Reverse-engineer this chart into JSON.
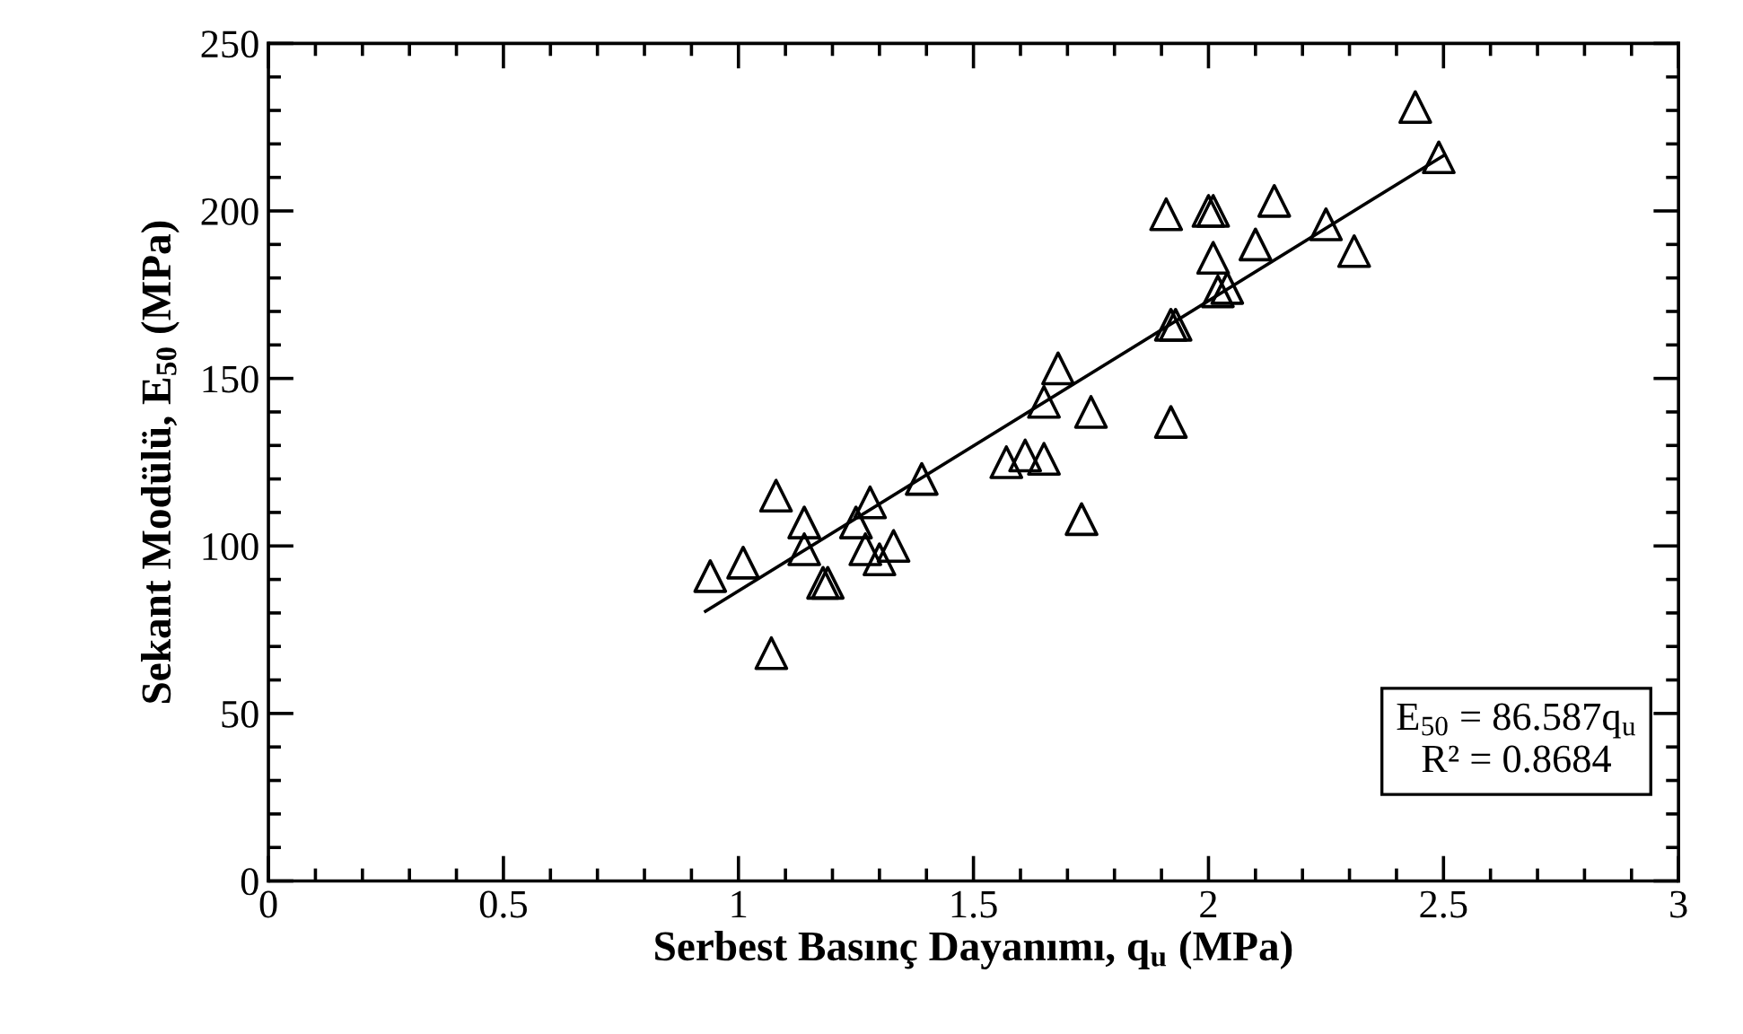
{
  "chart_data": {
    "type": "scatter",
    "xlabel": "Serbest Basınç Dayanımı, q$_{u}$ (MPa)",
    "ylabel": "Sekant Modülü, E$_{50}$ (MPa)",
    "xlim": [
      0,
      3
    ],
    "xticks": [
      0,
      0.5,
      1,
      1.5,
      2,
      2.5,
      3
    ],
    "ylim": [
      0,
      250
    ],
    "yticks": [
      0,
      50,
      100,
      150,
      200,
      250
    ],
    "grid": false,
    "legend": false,
    "series": [
      {
        "marker": "triangle",
        "color": "#000000",
        "x": [
          0.94,
          1.01,
          1.08,
          1.14,
          1.14,
          1.18,
          1.19,
          1.07,
          1.25,
          1.28,
          1.27,
          1.3,
          1.33,
          1.39,
          1.57,
          1.61,
          1.65,
          1.73,
          1.65,
          1.68,
          1.75,
          1.92,
          1.92,
          1.93,
          1.91,
          2.0,
          2.01,
          2.01,
          2.02,
          2.04,
          2.1,
          2.14,
          2.25,
          2.31,
          2.44,
          2.49
        ],
        "values": [
          91,
          95,
          115,
          107,
          99,
          89,
          89,
          68,
          107,
          113,
          99,
          96,
          100,
          120,
          125,
          127,
          126,
          108,
          143,
          153,
          140,
          137,
          166,
          166,
          199,
          200,
          200,
          186,
          176,
          177,
          190,
          203,
          196,
          188,
          231,
          216
        ]
      },
      {
        "type": "line",
        "color": "#000000",
        "x": [
          0.93,
          2.5
        ],
        "values": [
          80.5,
          216.5
        ]
      }
    ],
    "annotations": [
      "E$_{50}$ = 86.587q$_{u}$",
      "R² = 0.8684"
    ]
  }
}
